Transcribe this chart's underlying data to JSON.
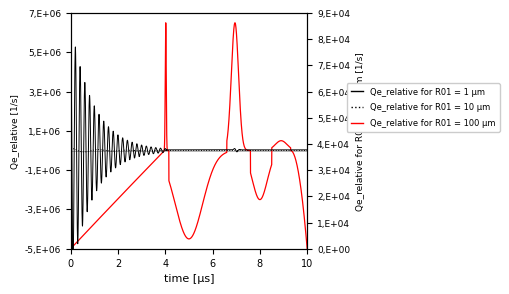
{
  "xlabel": "time [μs]",
  "ylabel_left": "Qe_relative [1/s]",
  "ylabel_right": "Qe_relative for R01 = 100 μm [1/s]",
  "xlim": [
    0,
    10
  ],
  "ylim_left": [
    -5000000.0,
    7000000.0
  ],
  "ylim_right": [
    0,
    90000.0
  ],
  "left_ticks": [
    -5000000.0,
    -3000000.0,
    -1000000.0,
    1000000.0,
    3000000.0,
    5000000.0,
    7000000.0
  ],
  "left_labels": [
    "-5,E+06",
    "-3,E+06",
    "-1,E+06",
    "1,E+06",
    "3,E+06",
    "5,E+06",
    "7,E+06"
  ],
  "right_ticks": [
    0,
    10000.0,
    20000.0,
    30000.0,
    40000.0,
    50000.0,
    60000.0,
    70000.0,
    80000.0,
    90000.0
  ],
  "right_labels": [
    "0,E+00",
    "1,E+04",
    "2,E+04",
    "3,E+04",
    "4,E+04",
    "5,E+04",
    "6,E+04",
    "7,E+04",
    "8,E+04",
    "9,E+04"
  ],
  "xticks": [
    0,
    2,
    4,
    6,
    8,
    10
  ],
  "legend": [
    {
      "label": "Qe_relative for R01 = 1 μm",
      "color": "black",
      "linestyle": "solid"
    },
    {
      "label": "Qe_relative for R01 = 10 μm",
      "color": "black",
      "linestyle": "dotted"
    },
    {
      "label": "Qe_relative for R01 = 100 μm",
      "color": "red",
      "linestyle": "solid"
    }
  ],
  "background_color": "#ffffff",
  "hline_y": 0,
  "hline_color": "#aaaaaa"
}
